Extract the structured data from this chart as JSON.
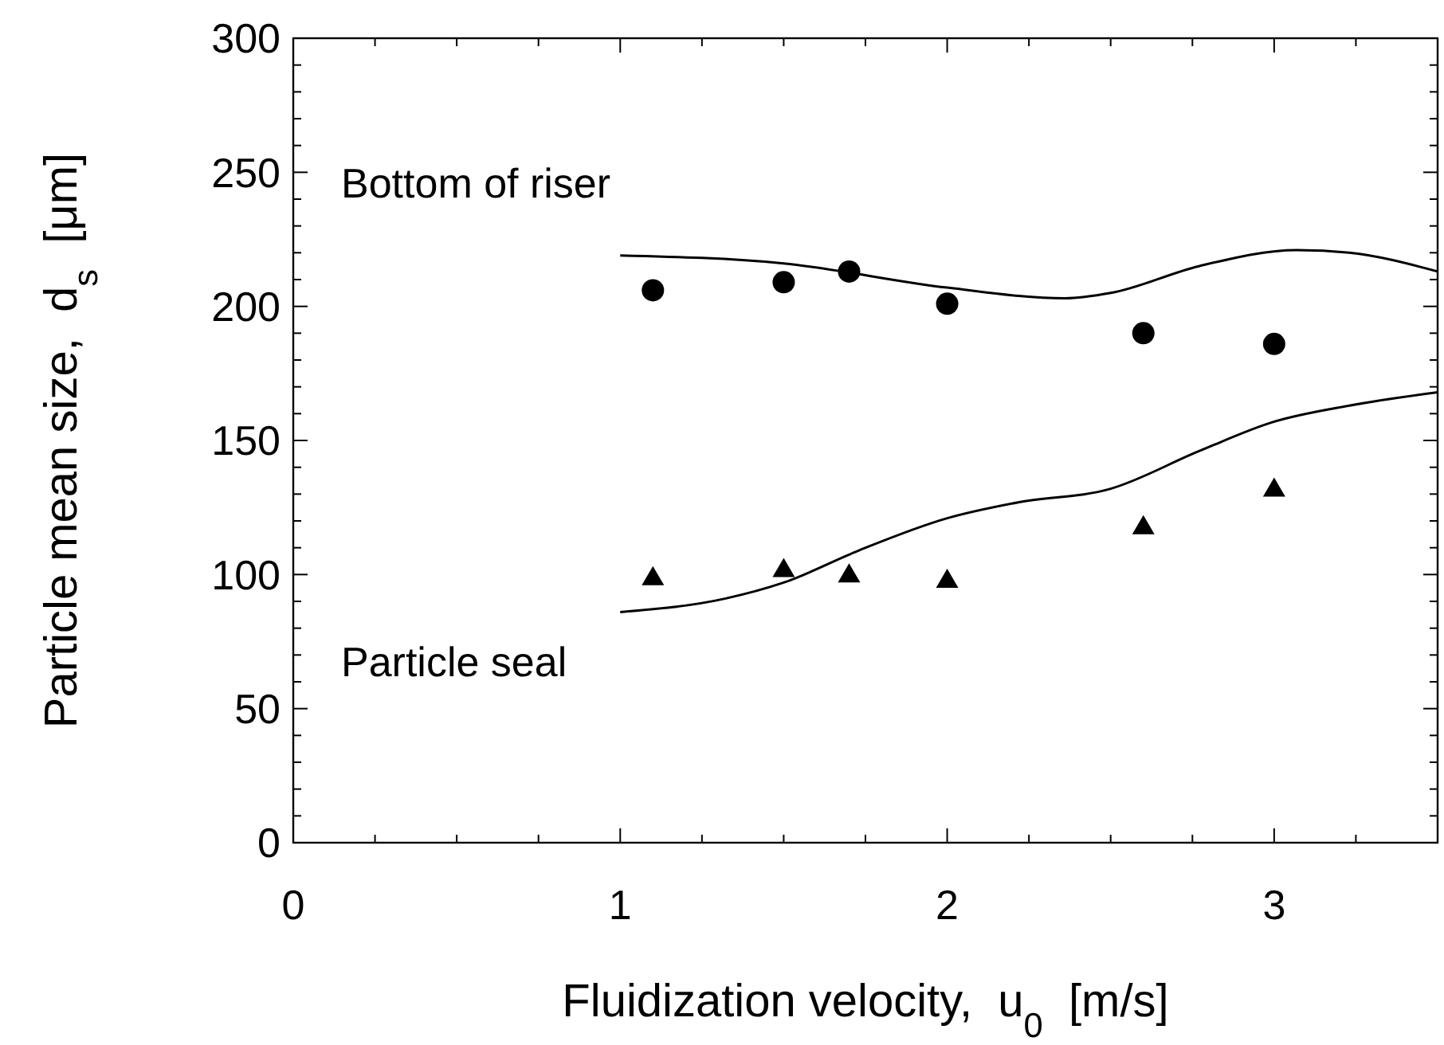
{
  "chart_data": {
    "type": "scatter",
    "xlabel": "Fluidization velocity,  u$_{0}$  [m/s]",
    "ylabel": "Particle mean size,  d$_{s}$  [μm]",
    "xlim": [
      0,
      3.5
    ],
    "ylim": [
      0,
      300
    ],
    "xticks": [
      0,
      {
        "value": 0.25,
        "label": null
      },
      {
        "value": 0.5,
        "label": null
      },
      {
        "value": 0.75,
        "label": null
      },
      1,
      {
        "value": 1.25,
        "label": null
      },
      {
        "value": 1.5,
        "label": null
      },
      {
        "value": 1.75,
        "label": null
      },
      2,
      {
        "value": 2.25,
        "label": null
      },
      {
        "value": 2.5,
        "label": null
      },
      {
        "value": 2.75,
        "label": null
      },
      3,
      {
        "value": 3.25,
        "label": null
      },
      {
        "value": 3.5,
        "label": null
      }
    ],
    "yticks": [
      0,
      {
        "value": 10,
        "label": null
      },
      {
        "value": 20,
        "label": null
      },
      {
        "value": 30,
        "label": null
      },
      {
        "value": 40,
        "label": null
      },
      50,
      {
        "value": 60,
        "label": null
      },
      {
        "value": 70,
        "label": null
      },
      {
        "value": 80,
        "label": null
      },
      {
        "value": 90,
        "label": null
      },
      100,
      {
        "value": 110,
        "label": null
      },
      {
        "value": 120,
        "label": null
      },
      {
        "value": 130,
        "label": null
      },
      {
        "value": 140,
        "label": null
      },
      150,
      {
        "value": 160,
        "label": null
      },
      {
        "value": 170,
        "label": null
      },
      {
        "value": 180,
        "label": null
      },
      {
        "value": 190,
        "label": null
      },
      200,
      {
        "value": 210,
        "label": null
      },
      {
        "value": 220,
        "label": null
      },
      {
        "value": 230,
        "label": null
      },
      {
        "value": 240,
        "label": null
      },
      250,
      {
        "value": 260,
        "label": null
      },
      {
        "value": 270,
        "label": null
      },
      {
        "value": 280,
        "label": null
      },
      {
        "value": 290,
        "label": null
      },
      300
    ],
    "grid": false,
    "series": [
      {
        "name": "Bottom of riser",
        "marker": "circle",
        "color": "#000000",
        "x": [
          1.1,
          1.5,
          1.7,
          2.0,
          2.6,
          3.0
        ],
        "values": [
          206,
          209,
          213,
          201,
          190,
          186
        ]
      },
      {
        "name": "Particle seal",
        "marker": "triangle",
        "color": "#000000",
        "x": [
          1.1,
          1.5,
          1.7,
          2.0,
          2.6,
          3.0
        ],
        "values": [
          99,
          102,
          100,
          98,
          118,
          132
        ]
      },
      {
        "type": "line",
        "marker": "none",
        "line_style": "solid",
        "color": "#000000",
        "x": [
          1.0,
          1.5,
          2.0,
          2.36,
          2.5,
          2.77,
          3.07,
          3.23,
          3.5
        ],
        "values": [
          219,
          216,
          207,
          203,
          205,
          215,
          221,
          220,
          213
        ]
      },
      {
        "type": "line",
        "marker": "none",
        "line_style": "solid",
        "color": "#000000",
        "x": [
          1.0,
          1.32,
          1.5,
          1.73,
          2.0,
          2.22,
          2.5,
          2.77,
          3.0,
          3.23,
          3.5
        ],
        "values": [
          86,
          91,
          97,
          109,
          121,
          127,
          132,
          146,
          157,
          163,
          168
        ]
      }
    ]
  }
}
